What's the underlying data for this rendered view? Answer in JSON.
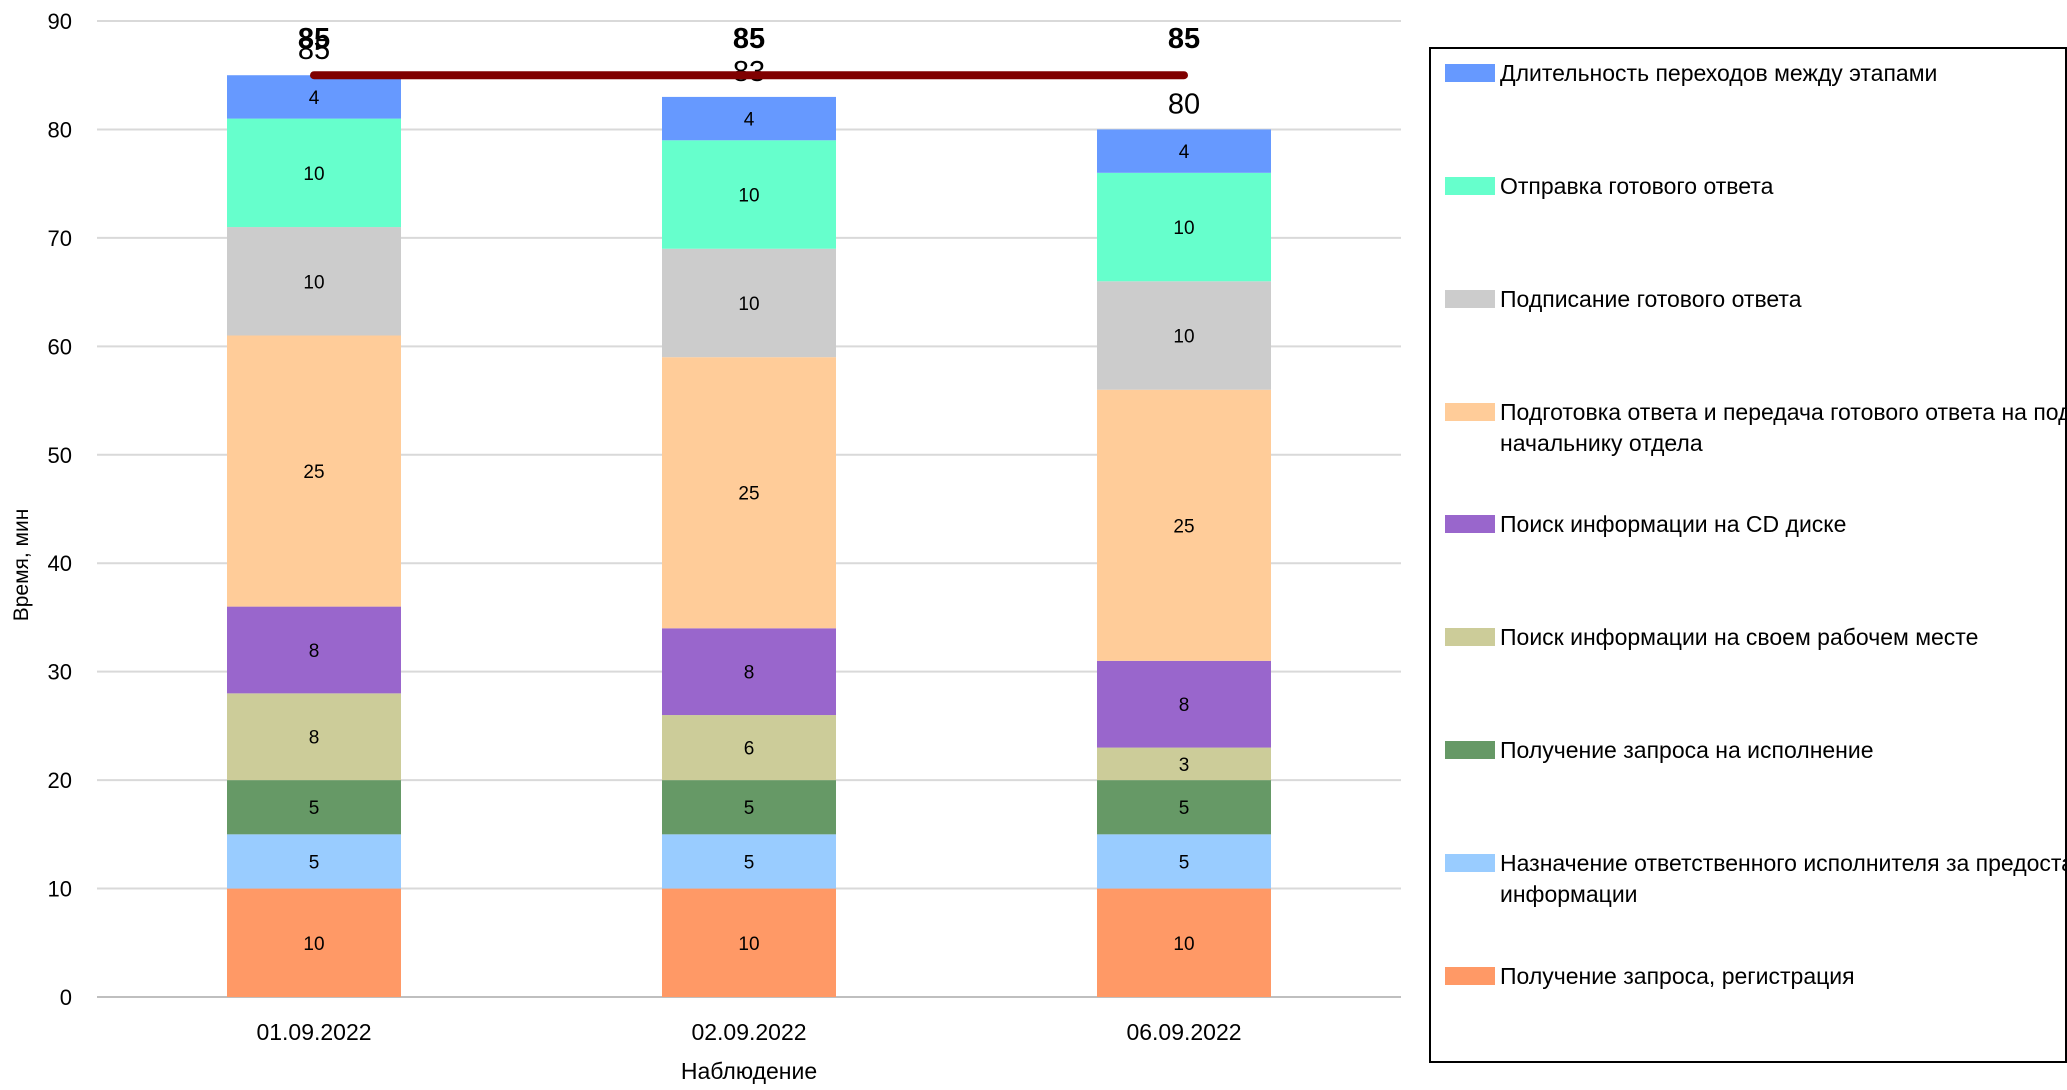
{
  "chart_data": {
    "type": "bar",
    "stacked": true,
    "categories": [
      "01.09.2022",
      "02.09.2022",
      "06.09.2022"
    ],
    "xlabel": "Наблюдение",
    "ylabel": "Время, мин",
    "ylim": [
      0,
      90
    ],
    "yticks": [
      "0",
      "10",
      "20",
      "30",
      "40",
      "50",
      "60",
      "70",
      "80",
      "90"
    ],
    "ytick_values": [
      0,
      10,
      20,
      30,
      40,
      50,
      60,
      70,
      80,
      90
    ],
    "grid": true,
    "legend_position": "right",
    "series": [
      {
        "name": "Получение запроса, регистрация",
        "values": [
          10,
          10,
          10
        ],
        "labels": [
          "10",
          "10",
          "10"
        ],
        "color": "#FF9966"
      },
      {
        "name": "Назначение ответственного исполнителя за предоставление  информации",
        "values": [
          5,
          5,
          5
        ],
        "labels": [
          "5",
          "5",
          "5"
        ],
        "color": "#99CCFF"
      },
      {
        "name": "Получение запроса на исполнение",
        "values": [
          5,
          5,
          5
        ],
        "labels": [
          "5",
          "5",
          "5"
        ],
        "color": "#669966"
      },
      {
        "name": "Поиск информации на своем рабочем месте",
        "values": [
          8,
          6,
          3
        ],
        "labels": [
          "8",
          "6",
          "3"
        ],
        "color": "#CCCC99"
      },
      {
        "name": "Поиск информации на CD диске",
        "values": [
          8,
          8,
          8
        ],
        "labels": [
          "8",
          "8",
          "8"
        ],
        "color": "#9966CC"
      },
      {
        "name": "Подготовка ответа и передача готового ответа на подпись начальнику отдела",
        "values": [
          25,
          25,
          25
        ],
        "labels": [
          "25",
          "25",
          "25"
        ],
        "color": "#FFCC99"
      },
      {
        "name": "Подписание готового ответа",
        "values": [
          10,
          10,
          10
        ],
        "labels": [
          "10",
          "10",
          "10"
        ],
        "color": "#CCCCCC"
      },
      {
        "name": "Отправка готового ответа",
        "values": [
          10,
          10,
          10
        ],
        "labels": [
          "10",
          "10",
          "10"
        ],
        "color": "#66FFCC"
      },
      {
        "name": "Длительность переходов между этапами",
        "values": [
          4,
          4,
          4
        ],
        "labels": [
          "4",
          "4",
          "4"
        ],
        "color": "#6699FF"
      }
    ],
    "totals": {
      "values": [
        85,
        83,
        80
      ],
      "labels": [
        "85",
        "83",
        "80"
      ]
    },
    "reference_line": {
      "values": [
        85,
        85,
        85
      ],
      "labels": [
        "85",
        "85",
        "85"
      ],
      "color": "#800000"
    }
  }
}
